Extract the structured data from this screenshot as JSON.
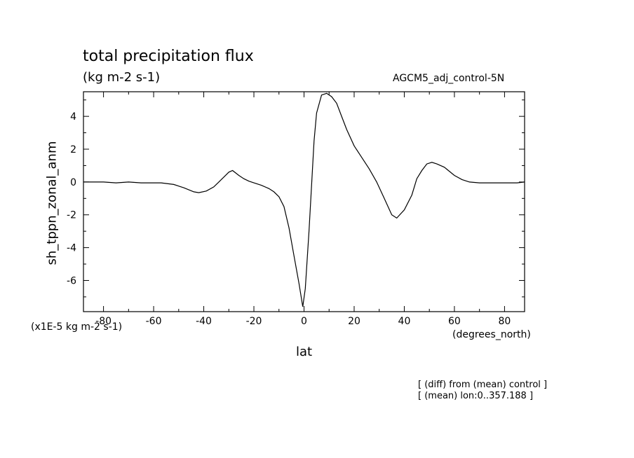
{
  "chart_data": {
    "type": "line",
    "title": "total precipitation flux",
    "subtitle": "(kg m-2 s-1)",
    "dataset_label": "AGCM5_adj_control-5N",
    "xlabel": "lat",
    "ylabel": "sh_tppn_zonal_anm",
    "x_units": "(degrees_north)",
    "y_units": "(x1E-5 kg m-2 s-1)",
    "xlim": [
      -88,
      88
    ],
    "ylim": [
      -7.9,
      5.5
    ],
    "xticks": [
      -80,
      -60,
      -40,
      -20,
      0,
      20,
      40,
      60,
      80
    ],
    "xtick_labels": [
      "-80",
      "-60",
      "-40",
      "-20",
      "0",
      "20",
      "40",
      "60",
      "80"
    ],
    "yticks": [
      -6,
      -4,
      -2,
      0,
      2,
      4
    ],
    "ytick_labels": [
      "-6",
      "-4",
      "-2",
      "0",
      "2",
      "4"
    ],
    "grid": false,
    "series": [
      {
        "x": [
          -88,
          -80,
          -75,
          -70,
          -65,
          -60,
          -57,
          -52,
          -48,
          -44,
          -42,
          -39,
          -36,
          -34,
          -32,
          -30,
          -28.5,
          -26,
          -24,
          -22,
          -20,
          -17,
          -14,
          -12,
          -10,
          -8,
          -6,
          -4,
          -2,
          -0.5,
          0.5,
          2,
          4,
          5,
          7,
          9,
          11,
          13,
          15,
          17,
          20,
          23,
          26,
          29,
          32,
          35,
          37,
          40,
          43,
          45,
          47,
          49,
          51,
          53,
          56,
          60,
          63,
          66,
          70,
          75,
          80,
          85,
          88
        ],
        "y": [
          0.0,
          0.0,
          -0.05,
          0.0,
          -0.05,
          -0.05,
          -0.05,
          -0.15,
          -0.35,
          -0.6,
          -0.65,
          -0.55,
          -0.3,
          0.0,
          0.3,
          0.6,
          0.7,
          0.4,
          0.2,
          0.05,
          -0.05,
          -0.2,
          -0.4,
          -0.6,
          -0.9,
          -1.5,
          -2.8,
          -4.5,
          -6.2,
          -7.6,
          -6.5,
          -3.0,
          2.5,
          4.2,
          5.3,
          5.4,
          5.2,
          4.8,
          4.0,
          3.2,
          2.2,
          1.5,
          0.8,
          0.0,
          -1.0,
          -2.0,
          -2.2,
          -1.7,
          -0.8,
          0.2,
          0.7,
          1.1,
          1.2,
          1.1,
          0.9,
          0.4,
          0.15,
          0.0,
          -0.05,
          -0.05,
          -0.05,
          -0.05,
          0.0
        ]
      }
    ]
  },
  "notes": [
    "[ (diff) from (mean) control ]",
    "[ (mean) lon:0..357.188 ]"
  ]
}
